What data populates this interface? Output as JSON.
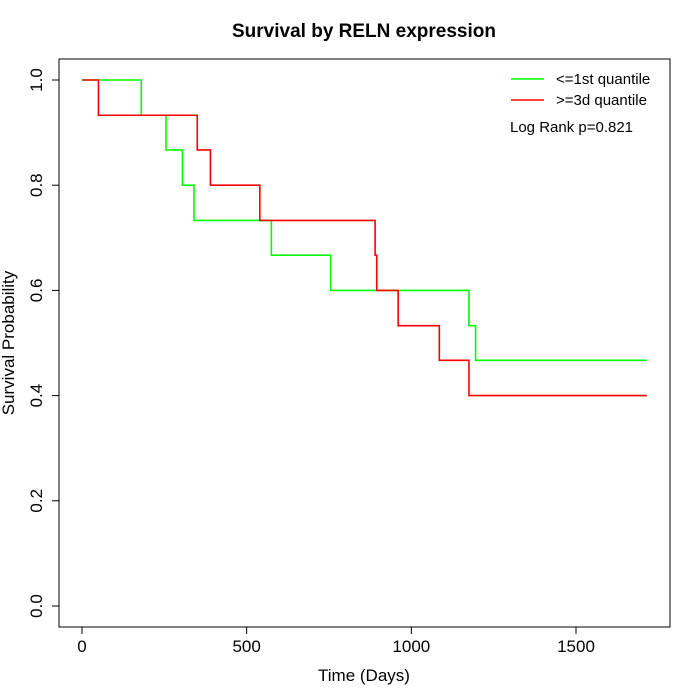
{
  "chart_data": {
    "type": "line",
    "step": true,
    "title": "Survival by RELN expression",
    "xlabel": "Time (Days)",
    "ylabel": "Survival Probability",
    "xlim": [
      0,
      1720
    ],
    "ylim": [
      0,
      1
    ],
    "xticks": [
      0,
      500,
      1000,
      1500
    ],
    "yticks": [
      0.0,
      0.2,
      0.4,
      0.6,
      0.8,
      1.0
    ],
    "xtick_labels": [
      "0",
      "500",
      "1000",
      "1500"
    ],
    "ytick_labels": [
      "0.0",
      "0.2",
      "0.4",
      "0.6",
      "0.8",
      "1.0"
    ],
    "grid": false,
    "legend_position": "top-right",
    "annotation": "Log Rank p=0.821",
    "series": [
      {
        "name": "<=1st quantile",
        "color": "#00ff00",
        "x": [
          0,
          180,
          255,
          305,
          340,
          575,
          755,
          1175,
          1195,
          1715
        ],
        "y": [
          1.0,
          0.933,
          0.867,
          0.8,
          0.733,
          0.667,
          0.6,
          0.533,
          0.467,
          0.467
        ]
      },
      {
        "name": ">=3d quantile",
        "color": "#ff0000",
        "x": [
          0,
          50,
          350,
          390,
          540,
          890,
          895,
          960,
          1085,
          1175,
          1715
        ],
        "y": [
          1.0,
          0.933,
          0.867,
          0.8,
          0.733,
          0.667,
          0.6,
          0.533,
          0.467,
          0.4,
          0.4
        ]
      }
    ]
  }
}
